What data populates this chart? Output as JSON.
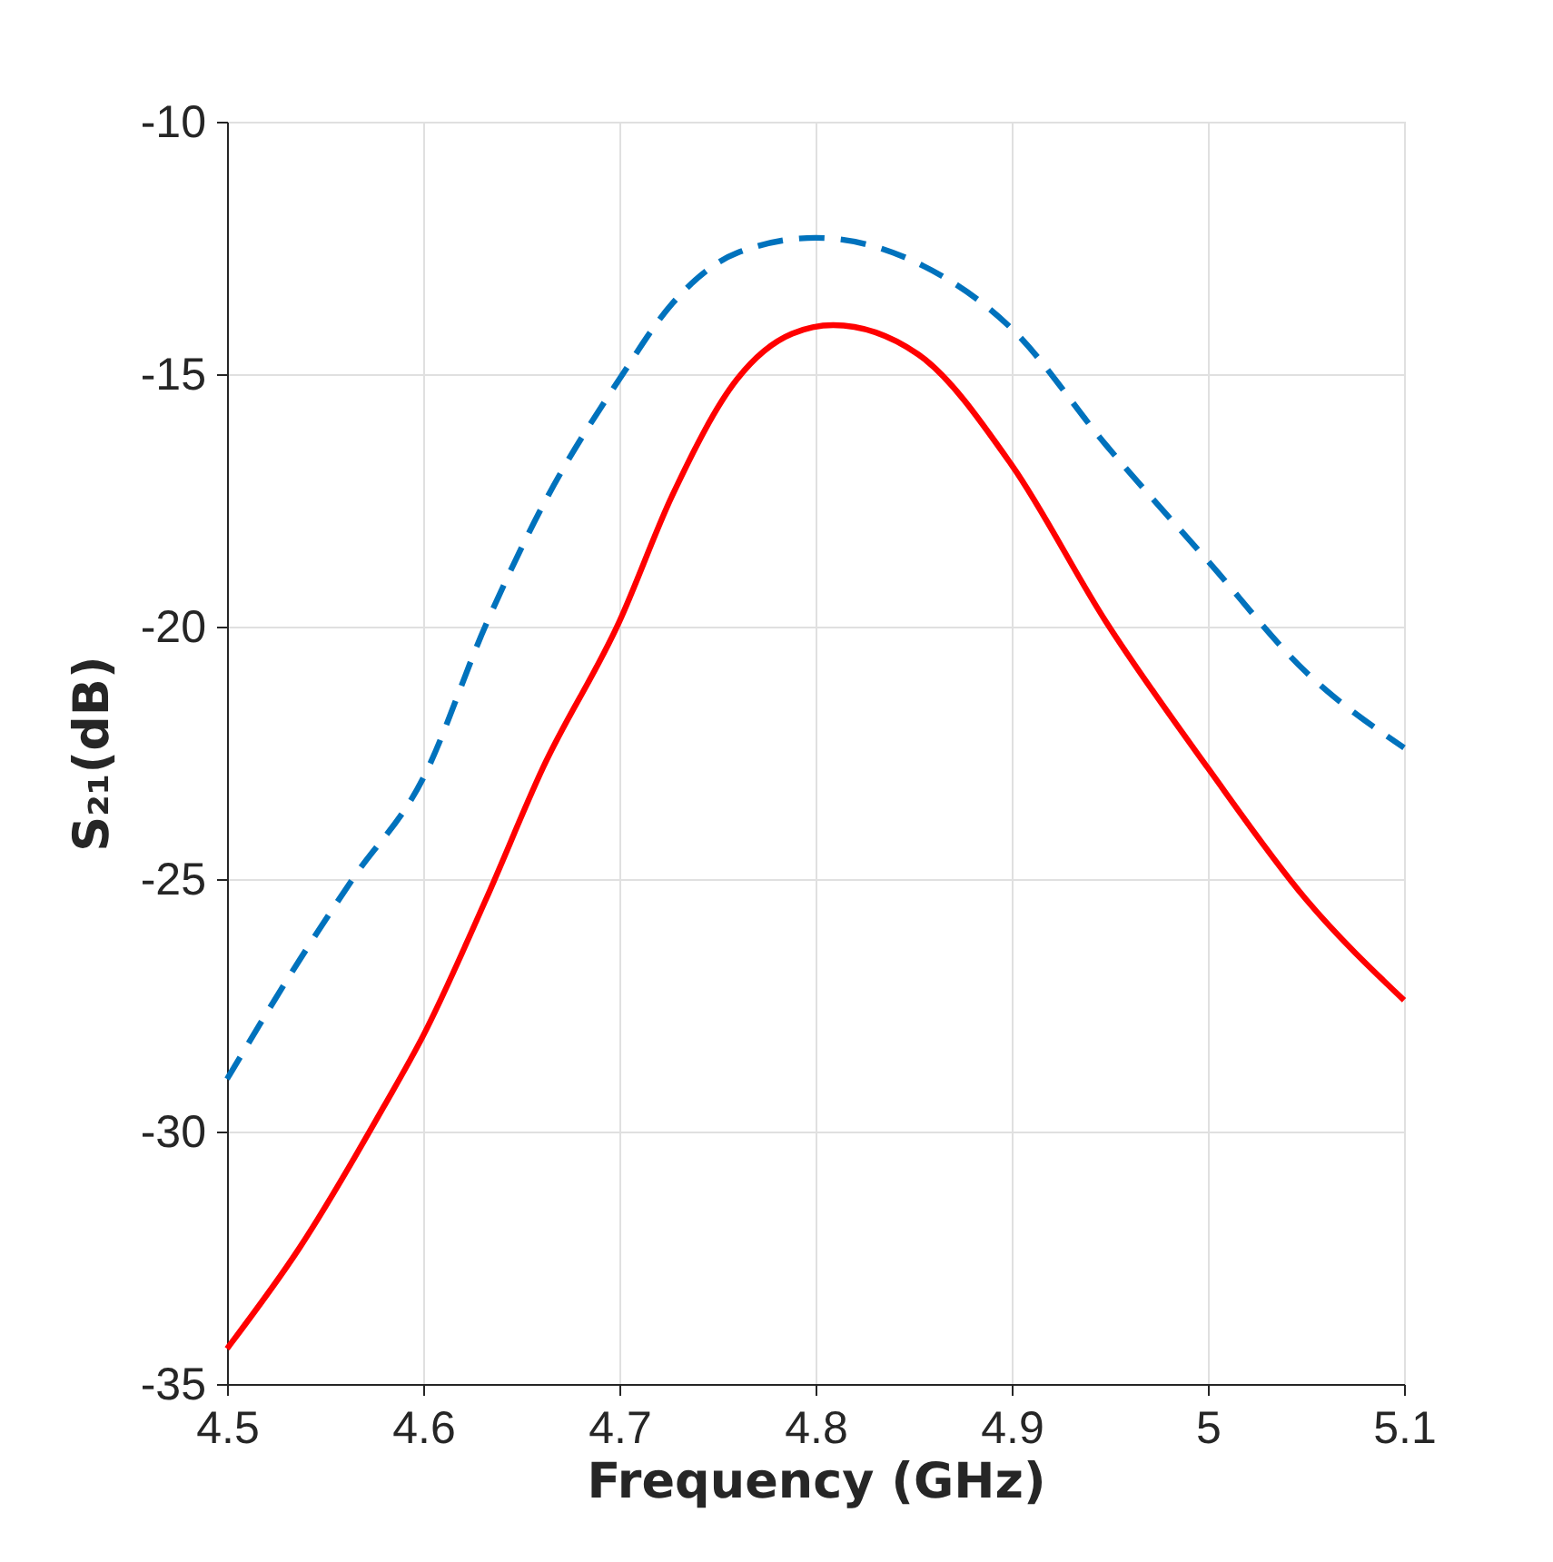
{
  "chart_data": {
    "type": "line",
    "xlabel": "Frequency (GHz)",
    "ylabel": "S₂₁(dB)",
    "xlim": [
      4.5,
      5.1
    ],
    "xticks": [
      4.5,
      4.6,
      4.7,
      4.8,
      4.9,
      5,
      5.1
    ],
    "ylim": [
      -35,
      -10
    ],
    "yticks": [
      -35,
      -30,
      -25,
      -20,
      -15,
      -10
    ],
    "grid": true,
    "series": [
      {
        "color": "#0072bd",
        "line_style": "dashed",
        "x": [
          4.5,
          4.537,
          4.564,
          4.6,
          4.632,
          4.661,
          4.7,
          4.727,
          4.76,
          4.8,
          4.852,
          4.9,
          4.948,
          5.0,
          5.05,
          5.1
        ],
        "values": [
          -28.96,
          -26.6,
          -25.0,
          -23.0,
          -19.96,
          -17.6,
          -15.1,
          -13.6,
          -12.6,
          -12.3,
          -12.8,
          -14.1,
          -16.4,
          -18.7,
          -20.9,
          -22.4
        ]
      },
      {
        "color": "#ff0000",
        "line_style": "solid",
        "x": [
          4.5,
          4.537,
          4.58,
          4.6,
          4.632,
          4.661,
          4.7,
          4.727,
          4.76,
          4.788,
          4.809,
          4.852,
          4.9,
          4.948,
          5.0,
          5.05,
          5.1
        ],
        "values": [
          -34.3,
          -32.3,
          -29.5,
          -28.1,
          -25.4,
          -22.8,
          -19.9,
          -17.4,
          -15.1,
          -14.2,
          -14.03,
          -14.6,
          -16.8,
          -19.9,
          -22.8,
          -25.4,
          -27.4
        ]
      }
    ]
  }
}
